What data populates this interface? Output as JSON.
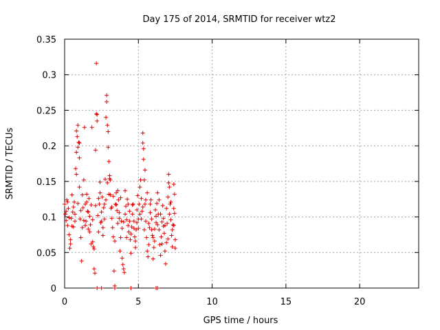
{
  "chart_data": {
    "type": "scatter",
    "title": "Day 175 of 2014, SRMTID for receiver wtz2",
    "xlabel": "GPS time / hours",
    "ylabel": "SRMTID / TECUs",
    "xlim": [
      0,
      24
    ],
    "ylim": [
      0,
      0.35
    ],
    "xticks": [
      0,
      5,
      10,
      15,
      20
    ],
    "xtick_labels": [
      "0",
      "5",
      "10",
      "15",
      "20"
    ],
    "yticks": [
      0,
      0.05,
      0.1,
      0.15,
      0.2,
      0.25,
      0.3,
      0.35
    ],
    "ytick_labels": [
      "0",
      "0.05",
      "0.1",
      "0.15",
      "0.2",
      "0.25",
      "0.3",
      "0.35"
    ],
    "grid": true,
    "marker": "+",
    "color": "#e00000",
    "series": [
      {
        "name": "SRMTID",
        "points": [
          [
            0.0,
            0.118
          ],
          [
            0.05,
            0.104
          ],
          [
            0.1,
            0.095
          ],
          [
            0.15,
            0.124
          ],
          [
            0.2,
            0.088
          ],
          [
            0.25,
            0.112
          ],
          [
            0.3,
            0.075
          ],
          [
            0.35,
            0.056
          ],
          [
            0.4,
            0.062
          ],
          [
            0.45,
            0.098
          ],
          [
            0.5,
            0.131
          ],
          [
            0.55,
            0.107
          ],
          [
            0.6,
            0.086
          ],
          [
            0.65,
            0.121
          ],
          [
            0.7,
            0.094
          ],
          [
            0.75,
            0.168
          ],
          [
            0.8,
            0.191
          ],
          [
            0.85,
            0.213
          ],
          [
            0.9,
            0.229
          ],
          [
            0.95,
            0.205
          ],
          [
            1.0,
            0.142
          ],
          [
            1.05,
            0.097
          ],
          [
            1.1,
            0.071
          ],
          [
            1.15,
            0.038
          ],
          [
            1.2,
            0.085
          ],
          [
            1.25,
            0.113
          ],
          [
            1.3,
            0.152
          ],
          [
            1.35,
            0.226
          ],
          [
            1.4,
            0.118
          ],
          [
            1.45,
            0.094
          ],
          [
            1.5,
            0.132
          ],
          [
            1.55,
            0.108
          ],
          [
            1.6,
            0.083
          ],
          [
            1.65,
            0.126
          ],
          [
            1.7,
            0.101
          ],
          [
            1.75,
            0.089
          ],
          [
            1.8,
            0.117
          ],
          [
            1.85,
            0.226
          ],
          [
            1.9,
            0.065
          ],
          [
            1.95,
            0.058
          ],
          [
            2.0,
            0.027
          ],
          [
            2.05,
            0.021
          ],
          [
            2.1,
            0.194
          ],
          [
            2.15,
            0.316
          ],
          [
            2.2,
            0.244
          ],
          [
            2.25,
            0.102
          ],
          [
            2.3,
            0.079
          ],
          [
            2.35,
            0.118
          ],
          [
            2.4,
            0.134
          ],
          [
            2.45,
            0.092
          ],
          [
            2.5,
            0.107
          ],
          [
            2.55,
            0.128
          ],
          [
            2.6,
            0.085
          ],
          [
            2.65,
            0.113
          ],
          [
            2.7,
            0.097
          ],
          [
            2.75,
            0.153
          ],
          [
            2.8,
            0.24
          ],
          [
            2.85,
            0.271
          ],
          [
            2.9,
            0.229
          ],
          [
            2.95,
            0.198
          ],
          [
            3.0,
            0.178
          ],
          [
            3.05,
            0.154
          ],
          [
            3.1,
            0.131
          ],
          [
            3.15,
            0.112
          ],
          [
            3.2,
            0.098
          ],
          [
            3.25,
            0.085
          ],
          [
            3.3,
            0.072
          ],
          [
            3.35,
            0.024
          ],
          [
            3.4,
            0.003
          ],
          [
            3.45,
            0.118
          ],
          [
            3.5,
            0.134
          ],
          [
            3.55,
            0.109
          ],
          [
            3.6,
            0.091
          ],
          [
            3.65,
            0.124
          ],
          [
            3.7,
            0.106
          ],
          [
            3.75,
            0.052
          ],
          [
            3.8,
            0.071
          ],
          [
            3.85,
            0.094
          ],
          [
            3.9,
            0.042
          ],
          [
            3.95,
            0.033
          ],
          [
            4.0,
            0.027
          ],
          [
            4.05,
            0.022
          ],
          [
            4.1,
            0.137
          ],
          [
            4.15,
            0.115
          ],
          [
            4.2,
            0.096
          ],
          [
            4.25,
            0.125
          ],
          [
            4.3,
            0.088
          ],
          [
            4.35,
            0.079
          ],
          [
            4.4,
            0.108
          ],
          [
            4.45,
            0.068
          ],
          [
            4.5,
            0.049
          ],
          [
            4.55,
            0.086
          ],
          [
            4.6,
            0.104
          ],
          [
            4.65,
            0.118
          ],
          [
            4.7,
            0.094
          ],
          [
            4.75,
            0.072
          ],
          [
            4.8,
            0.057
          ],
          [
            4.85,
            0.082
          ],
          [
            4.9,
            0.11
          ],
          [
            4.95,
            0.13
          ],
          [
            5.0,
            0.097
          ],
          [
            5.05,
            0.118
          ],
          [
            5.1,
            0.142
          ],
          [
            5.15,
            0.152
          ],
          [
            5.2,
            0.126
          ],
          [
            5.25,
            0.108
          ],
          [
            5.3,
            0.218
          ],
          [
            5.35,
            0.196
          ],
          [
            5.4,
            0.152
          ],
          [
            5.45,
            0.118
          ],
          [
            5.5,
            0.094
          ],
          [
            5.55,
            0.071
          ],
          [
            5.6,
            0.052
          ],
          [
            5.65,
            0.044
          ],
          [
            5.7,
            0.061
          ],
          [
            5.75,
            0.085
          ],
          [
            5.8,
            0.106
          ],
          [
            5.85,
            0.124
          ],
          [
            5.9,
            0.097
          ],
          [
            5.95,
            0.074
          ],
          [
            6.0,
            0.041
          ],
          [
            6.05,
            0.057
          ],
          [
            6.1,
            0.083
          ],
          [
            6.15,
            0.11
          ],
          [
            6.2,
            0.092
          ],
          [
            6.25,
            0.119
          ],
          [
            6.3,
            0.134
          ],
          [
            6.35,
            0.104
          ],
          [
            6.4,
            0.082
          ],
          [
            6.45,
            0.061
          ],
          [
            6.5,
            0.046
          ],
          [
            6.55,
            0.072
          ],
          [
            6.6,
            0.093
          ],
          [
            6.65,
            0.116
          ],
          [
            6.7,
            0.098
          ],
          [
            6.75,
            0.077
          ],
          [
            6.8,
            0.052
          ],
          [
            6.85,
            0.034
          ],
          [
            6.9,
            0.064
          ],
          [
            6.95,
            0.091
          ],
          [
            7.0,
            0.128
          ],
          [
            7.05,
            0.16
          ],
          [
            7.1,
            0.142
          ],
          [
            7.15,
            0.118
          ],
          [
            7.2,
            0.096
          ],
          [
            7.25,
            0.074
          ],
          [
            7.3,
            0.058
          ],
          [
            7.35,
            0.089
          ],
          [
            7.4,
            0.112
          ],
          [
            7.45,
            0.132
          ],
          [
            0.1,
            0.108
          ],
          [
            0.3,
            0.099
          ],
          [
            0.5,
            0.087
          ],
          [
            0.7,
            0.104
          ],
          [
            0.9,
            0.119
          ],
          [
            1.1,
            0.109
          ],
          [
            1.3,
            0.095
          ],
          [
            1.5,
            0.121
          ],
          [
            1.7,
            0.079
          ],
          [
            1.9,
            0.096
          ],
          [
            2.1,
            0.116
          ],
          [
            2.3,
            0.126
          ],
          [
            2.5,
            0.094
          ],
          [
            2.7,
            0.118
          ],
          [
            2.9,
            0.148
          ],
          [
            3.1,
            0.152
          ],
          [
            3.3,
            0.129
          ],
          [
            3.5,
            0.117
          ],
          [
            3.7,
            0.098
          ],
          [
            3.9,
            0.084
          ],
          [
            4.1,
            0.104
          ],
          [
            4.3,
            0.118
          ],
          [
            4.5,
            0.076
          ],
          [
            4.7,
            0.084
          ],
          [
            4.9,
            0.092
          ],
          [
            5.1,
            0.104
          ],
          [
            5.3,
            0.114
          ],
          [
            5.5,
            0.124
          ],
          [
            5.7,
            0.091
          ],
          [
            5.9,
            0.082
          ],
          [
            6.1,
            0.066
          ],
          [
            6.3,
            0.089
          ],
          [
            6.5,
            0.104
          ],
          [
            6.7,
            0.087
          ],
          [
            6.9,
            0.112
          ],
          [
            7.1,
            0.104
          ],
          [
            7.3,
            0.082
          ],
          [
            0.2,
            0.121
          ],
          [
            0.4,
            0.068
          ],
          [
            0.6,
            0.114
          ],
          [
            0.8,
            0.16
          ],
          [
            1.0,
            0.204
          ],
          [
            1.2,
            0.131
          ],
          [
            1.4,
            0.088
          ],
          [
            1.6,
            0.107
          ],
          [
            1.8,
            0.062
          ],
          [
            2.0,
            0.055
          ],
          [
            2.2,
            0.235
          ],
          [
            2.4,
            0.149
          ],
          [
            2.6,
            0.074
          ],
          [
            2.8,
            0.124
          ],
          [
            3.0,
            0.132
          ],
          [
            3.2,
            0.114
          ],
          [
            3.4,
            0.066
          ],
          [
            3.6,
            0.137
          ],
          [
            3.8,
            0.127
          ],
          [
            4.0,
            0.093
          ],
          [
            4.2,
            0.071
          ],
          [
            4.4,
            0.094
          ],
          [
            4.6,
            0.117
          ],
          [
            4.8,
            0.066
          ],
          [
            5.0,
            0.084
          ],
          [
            5.2,
            0.097
          ],
          [
            5.4,
            0.082
          ],
          [
            5.6,
            0.134
          ],
          [
            5.8,
            0.118
          ],
          [
            6.0,
            0.071
          ],
          [
            6.2,
            0.101
          ],
          [
            6.4,
            0.124
          ],
          [
            6.6,
            0.062
          ],
          [
            6.8,
            0.088
          ],
          [
            7.0,
            0.069
          ],
          [
            7.2,
            0.121
          ],
          [
            7.4,
            0.146
          ],
          [
            0.8,
            0.221
          ],
          [
            0.9,
            0.198
          ],
          [
            1.0,
            0.183
          ],
          [
            2.15,
            0.245
          ],
          [
            2.85,
            0.262
          ],
          [
            2.95,
            0.22
          ],
          [
            3.05,
            0.158
          ],
          [
            5.3,
            0.204
          ],
          [
            5.35,
            0.181
          ],
          [
            5.45,
            0.166
          ],
          [
            7.05,
            0.148
          ],
          [
            7.45,
            0.105
          ],
          [
            7.5,
            0.068
          ],
          [
            7.5,
            0.056
          ],
          [
            7.4,
            0.088
          ],
          [
            2.2,
            0.0
          ],
          [
            2.5,
            0.0
          ],
          [
            3.4,
            0.0
          ],
          [
            4.5,
            0.0
          ],
          [
            6.2,
            0.0
          ],
          [
            6.3,
            0.0
          ]
        ]
      }
    ]
  }
}
